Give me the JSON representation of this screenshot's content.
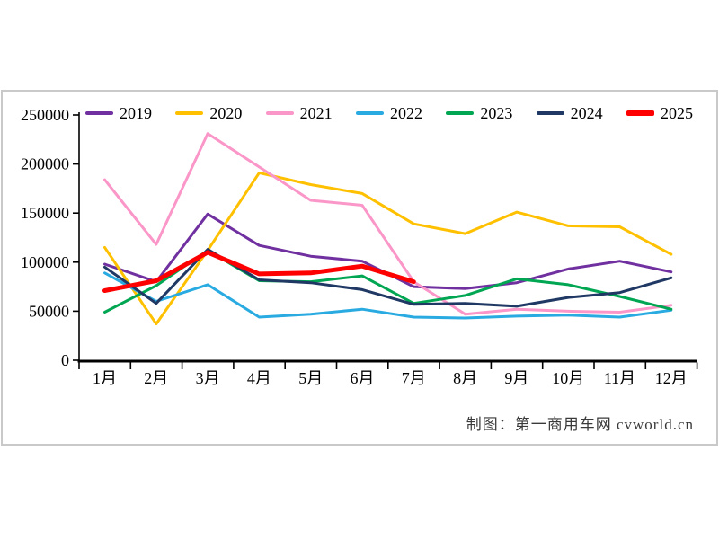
{
  "caption": "制图：第一商用车网 cvworld.cn",
  "chart_data": {
    "type": "line",
    "title": "",
    "xlabel": "",
    "ylabel": "",
    "categories": [
      "1月",
      "2月",
      "3月",
      "4月",
      "5月",
      "6月",
      "7月",
      "8月",
      "9月",
      "10月",
      "11月",
      "12月"
    ],
    "series": [
      {
        "name": "2019",
        "color": "#7030A0",
        "stroke_width": 3,
        "values": [
          98000,
          80000,
          149000,
          117000,
          106000,
          101000,
          75000,
          73000,
          79000,
          93000,
          101000,
          90000
        ]
      },
      {
        "name": "2020",
        "color": "#FFC000",
        "stroke_width": 3,
        "values": [
          115000,
          37000,
          112000,
          191000,
          179000,
          170000,
          139000,
          129000,
          151000,
          137000,
          136000,
          108000
        ]
      },
      {
        "name": "2021",
        "color": "#FA96C8",
        "stroke_width": 3,
        "values": [
          184000,
          118000,
          231000,
          197000,
          163000,
          158000,
          80000,
          47000,
          52000,
          50000,
          49000,
          56000
        ]
      },
      {
        "name": "2022",
        "color": "#29ABE2",
        "stroke_width": 3,
        "values": [
          89000,
          60000,
          77000,
          44000,
          47000,
          52000,
          44000,
          43000,
          45000,
          46000,
          44000,
          51000
        ]
      },
      {
        "name": "2023",
        "color": "#00A652",
        "stroke_width": 3,
        "values": [
          49000,
          76000,
          112000,
          81000,
          80000,
          86000,
          58000,
          66000,
          83000,
          77000,
          65000,
          52000
        ]
      },
      {
        "name": "2024",
        "color": "#1F3864",
        "stroke_width": 3,
        "values": [
          95000,
          58000,
          113000,
          82000,
          79000,
          72000,
          57000,
          58000,
          55000,
          64000,
          69000,
          84000
        ]
      },
      {
        "name": "2025",
        "color": "#FF0000",
        "stroke_width": 5,
        "values": [
          71000,
          81000,
          110000,
          88000,
          89000,
          96000,
          80000
        ]
      }
    ],
    "ylim": [
      0,
      250000
    ],
    "ytick_interval": 50000,
    "ytick_labels": [
      "0",
      "50000",
      "100000",
      "150000",
      "200000",
      "250000"
    ],
    "grid": "off",
    "legend_position": "top"
  }
}
